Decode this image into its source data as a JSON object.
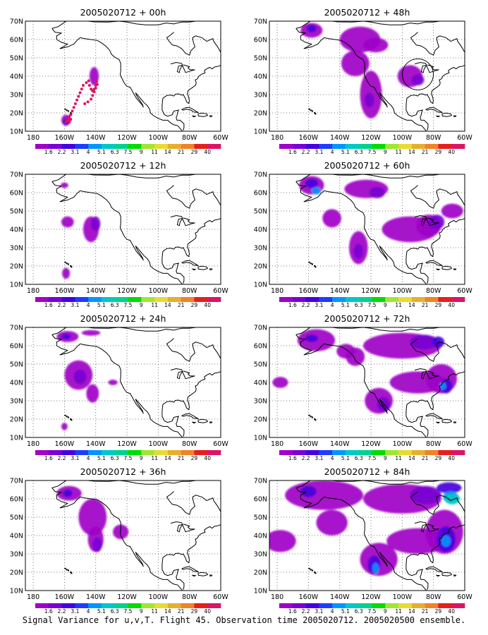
{
  "caption": "Signal Variance for u,v,T. Flight 45. Observation time 2005020712. 2005020500 ensemble.",
  "axes": {
    "y_labels": [
      "70N",
      "60N",
      "50N",
      "40N",
      "30N",
      "20N",
      "10N"
    ],
    "x_labels": [
      "180",
      "160W",
      "140W",
      "120W",
      "100W",
      "80W",
      "60W"
    ],
    "lon_range": [
      -185,
      -60
    ],
    "lat_range": [
      10,
      70
    ]
  },
  "colorbar": {
    "labels": [
      "1.6",
      "2.2",
      "3.1",
      "4",
      "5.1",
      "6.3",
      "7.5",
      "9",
      "11",
      "14",
      "21",
      "29",
      "40"
    ],
    "colors": [
      "#a000c8",
      "#7800d2",
      "#4400e0",
      "#1e3cff",
      "#0096ff",
      "#00c8c8",
      "#00d28c",
      "#00dc00",
      "#a0e632",
      "#e6dc32",
      "#e6af2d",
      "#f08228",
      "#e61e1e",
      "#dc1464"
    ]
  },
  "panels": [
    {
      "id": "p00",
      "title": "2005020712 + 00h"
    },
    {
      "id": "p48",
      "title": "2005020712 + 48h"
    },
    {
      "id": "p12",
      "title": "2005020712 + 12h"
    },
    {
      "id": "p60",
      "title": "2005020712 + 60h"
    },
    {
      "id": "p24",
      "title": "2005020712 + 24h"
    },
    {
      "id": "p72",
      "title": "2005020712 + 72h"
    },
    {
      "id": "p36",
      "title": "2005020712 + 36h"
    },
    {
      "id": "p84",
      "title": "2005020712 + 84h"
    }
  ],
  "flight_track_points": [
    [
      -147,
      25
    ],
    [
      -145,
      26
    ],
    [
      -143,
      27.5
    ],
    [
      -142,
      29.5
    ],
    [
      -141,
      31.5
    ],
    [
      -140,
      33.5
    ],
    [
      -139,
      35.5
    ],
    [
      -139.5,
      37
    ],
    [
      -140,
      35
    ],
    [
      -141,
      33
    ],
    [
      -142,
      32
    ],
    [
      -143,
      33
    ],
    [
      -144,
      35
    ],
    [
      -144.5,
      37.5
    ],
    [
      -146,
      36.5
    ],
    [
      -148,
      35
    ],
    [
      -149,
      33
    ],
    [
      -150,
      31
    ],
    [
      -151,
      29
    ],
    [
      -152,
      27
    ],
    [
      -153,
      25
    ],
    [
      -154,
      23
    ],
    [
      -155,
      21
    ],
    [
      -156,
      19
    ],
    [
      -157,
      17
    ],
    [
      -158,
      16
    ],
    [
      -159,
      15
    ],
    [
      -157,
      15
    ],
    [
      -156,
      16.5
    ],
    [
      -157,
      18
    ]
  ]
}
